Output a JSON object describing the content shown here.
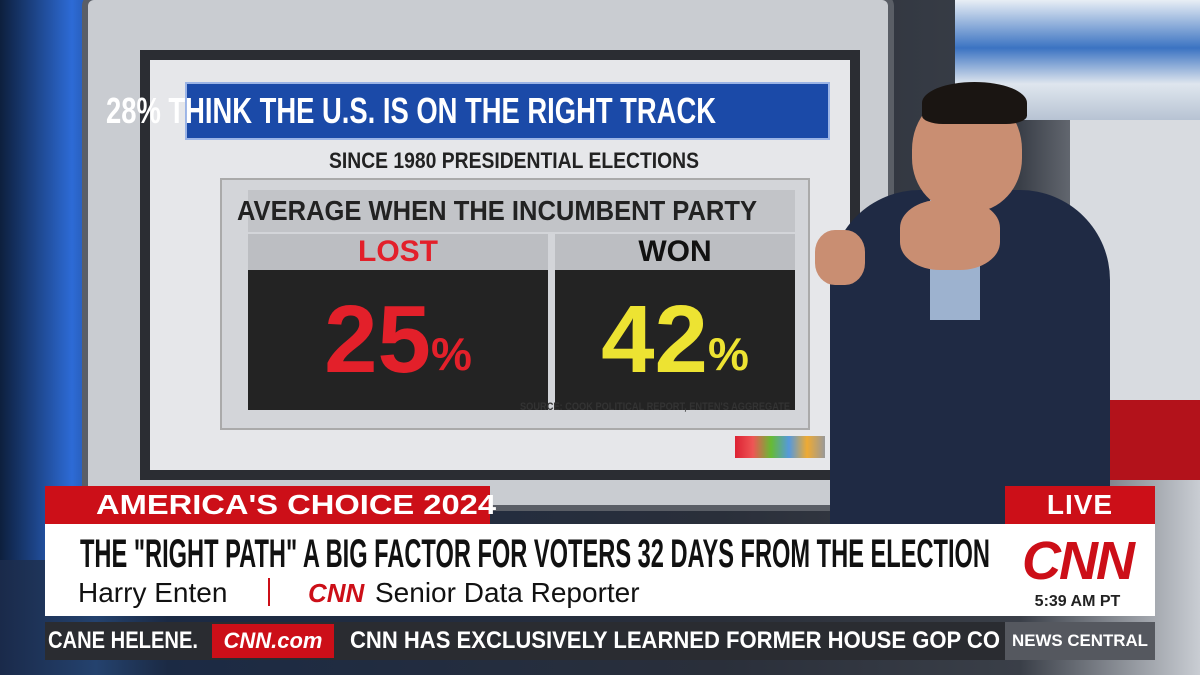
{
  "screen": {
    "title": "28% THINK THE U.S. IS ON THE RIGHT TRACK",
    "subtitle": "SINCE 1980 PRESIDENTIAL ELECTIONS",
    "header": "AVERAGE WHEN THE INCUMBENT PARTY",
    "columns": [
      {
        "label": "LOST",
        "value": "25",
        "unit": "%"
      },
      {
        "label": "WON",
        "value": "42",
        "unit": "%"
      }
    ],
    "source": "SOURCE: COOK POLITICAL REPORT, ENTEN'S AGGREGATE"
  },
  "lower_third": {
    "show": "AMERICA'S CHOICE 2024",
    "headline": "THE \"RIGHT PATH\" A BIG FACTOR FOR VOTERS 32 DAYS FROM THE ELECTION",
    "name": "Harry Enten",
    "network": "CNN",
    "role": "Senior Data Reporter",
    "live": "LIVE",
    "logo": "CNN",
    "time": "5:39 AM PT"
  },
  "ticker": {
    "left": "CANE HELENE.",
    "site": "CNN.com",
    "text": "CNN HAS EXCLUSIVELY LEARNED FORMER HOUSE GOP CO",
    "program": "NEWS CENTRAL"
  }
}
